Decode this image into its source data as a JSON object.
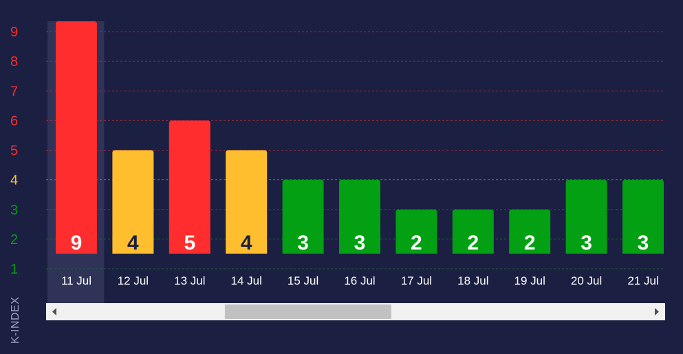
{
  "chart_data": {
    "type": "bar",
    "ylabel": "K-INDEX",
    "y_ticks": [
      "1",
      "2",
      "3",
      "4",
      "5",
      "6",
      "7",
      "8",
      "9"
    ],
    "ylim": [
      1,
      9
    ],
    "categories": [
      "11 Jul",
      "12 Jul",
      "13 Jul",
      "14 Jul",
      "15 Jul",
      "16 Jul",
      "17 Jul",
      "18 Jul",
      "19 Jul",
      "20 Jul",
      "21 Jul"
    ],
    "values": [
      9,
      4,
      5,
      4,
      3,
      3,
      2,
      2,
      2,
      3,
      3
    ],
    "selected_category": "11 Jul",
    "colors": {
      "storm": "#ff2d2d",
      "active": "#ffbe2e",
      "quiet": "#02a012",
      "background": "#1b1f42",
      "highlight": "#2f3357"
    },
    "tick_colors": [
      "#02a012",
      "#02a012",
      "#02a012",
      "#ffbe2e",
      "#ff2d2d",
      "#ff2d2d",
      "#ff2d2d",
      "#ff2d2d",
      "#ff2d2d"
    ],
    "grid": true,
    "scrollbar": {
      "thumb_start": 0.28,
      "thumb_end": 0.56,
      "left_arrow_icon": "triangle-left-icon",
      "right_arrow_icon": "triangle-right-icon"
    }
  }
}
